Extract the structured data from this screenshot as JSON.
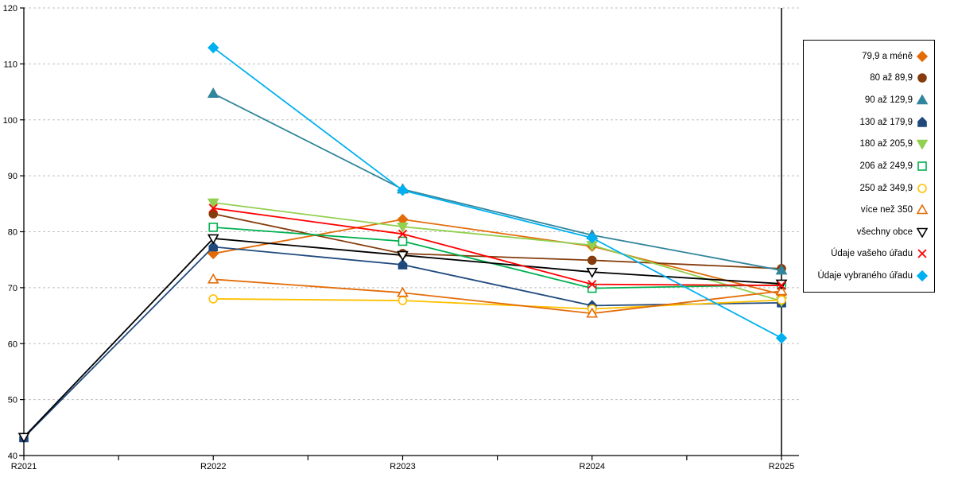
{
  "chart_data": {
    "type": "line",
    "title": "",
    "xlabel": "",
    "ylabel": "",
    "x_categories": [
      "R2021",
      "R2022",
      "R2023",
      "R2024",
      "R2025"
    ],
    "y_axis": {
      "min": 40,
      "max": 120,
      "step": 10,
      "tick_labels": [
        "40",
        "50",
        "60",
        "70",
        "80",
        "90",
        "100",
        "110",
        "120"
      ]
    },
    "grid": "horizontal-dashed",
    "gridline_color": "#BFBFBF",
    "axis_color": "#000000",
    "right_border_line": true,
    "legend_position": "right-outside",
    "series": [
      {
        "name": "79,9 a méně",
        "marker": "diamond",
        "style": "filled",
        "color": "#E36C09",
        "values": [
          null,
          76.1,
          82.2,
          77.4,
          68.8
        ]
      },
      {
        "name": "80 až 89,9",
        "marker": "circle",
        "style": "filled",
        "color": "#843C0C",
        "values": [
          null,
          83.2,
          76.1,
          74.9,
          73.4
        ]
      },
      {
        "name": "90 až 129,9",
        "marker": "triangle-up",
        "style": "filled",
        "color": "#31859C",
        "values": [
          null,
          104.7,
          87.6,
          79.4,
          73.1
        ]
      },
      {
        "name": "130 až 179,9",
        "marker": "pentagon",
        "style": "filled",
        "color": "#1F497D",
        "values": [
          43.2,
          77.3,
          74.1,
          66.8,
          67.3
        ]
      },
      {
        "name": "180 až 205,9",
        "marker": "triangle-down",
        "style": "filled",
        "color": "#92D050",
        "values": [
          null,
          85.2,
          80.9,
          77.6,
          67.6
        ]
      },
      {
        "name": "206 až 249,9",
        "marker": "square",
        "style": "open",
        "color": "#00B050",
        "values": [
          null,
          80.8,
          78.3,
          69.9,
          70.5
        ]
      },
      {
        "name": "250 až 349,9",
        "marker": "circle",
        "style": "open",
        "color": "#FFC000",
        "values": [
          null,
          68.0,
          67.7,
          66.2,
          67.8
        ]
      },
      {
        "name": "více než 350",
        "marker": "triangle-up",
        "style": "open",
        "color": "#E36C09",
        "values": [
          null,
          71.5,
          69.1,
          65.4,
          69.4
        ]
      },
      {
        "name": "všechny obce",
        "marker": "triangle-down",
        "style": "open",
        "color": "#000000",
        "values": [
          43.3,
          78.8,
          75.8,
          72.8,
          70.7
        ]
      },
      {
        "name": "Údaje vašeho úřadu",
        "marker": "x",
        "style": "open",
        "color": "#FF0000",
        "values": [
          null,
          84.2,
          79.6,
          70.6,
          70.4
        ]
      },
      {
        "name": "Údaje vybraného úřadu",
        "marker": "diamond",
        "style": "filled",
        "color": "#00B0F0",
        "values": [
          null,
          112.9,
          87.4,
          78.9,
          61.0
        ]
      }
    ]
  }
}
